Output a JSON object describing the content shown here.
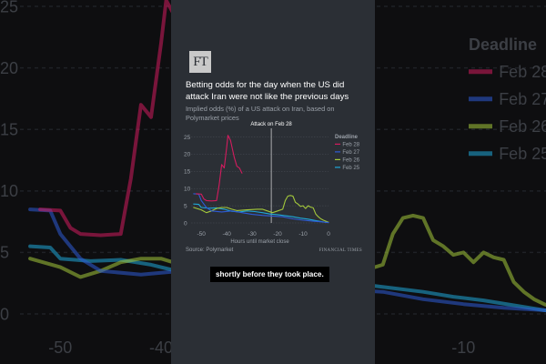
{
  "logo": "FT",
  "caption": "shortly before they took place.",
  "chart_data": {
    "type": "line",
    "title": "Betting odds for the day when the US did attack Iran were not like the previous days",
    "subtitle": "Implied odds (%) of a US attack on Iran, based on Polymarket prices",
    "xlabel": "Hours until market close",
    "ylabel": "",
    "xlim": [
      -54,
      0
    ],
    "ylim": [
      0,
      27
    ],
    "x_ticks": [
      "-50",
      "-40",
      "-30",
      "-20",
      "-10",
      "0"
    ],
    "y_ticks": [
      "0",
      "5",
      "10",
      "15",
      "20",
      "25"
    ],
    "grid": true,
    "legend": {
      "title": "Deadline",
      "position": "right"
    },
    "annotation": {
      "text": "Attack on Feb 28",
      "x": -22.5
    },
    "source": "Source: Polymarket",
    "publisher": "FINANCIAL TIMES",
    "series": [
      {
        "name": "Feb 28",
        "color": "#d21c5e",
        "points": [
          [
            -52,
            8.5
          ],
          [
            -50,
            8.4
          ],
          [
            -49,
            7
          ],
          [
            -48,
            6.5
          ],
          [
            -46,
            6.4
          ],
          [
            -44,
            6.5
          ],
          [
            -43,
            11
          ],
          [
            -42,
            17
          ],
          [
            -41,
            16
          ],
          [
            -40,
            22
          ],
          [
            -39.5,
            25.5
          ],
          [
            -38.5,
            24
          ],
          [
            -37,
            19
          ],
          [
            -36,
            16.5
          ],
          [
            -35,
            16
          ],
          [
            -34,
            14.5
          ]
        ]
      },
      {
        "name": "Feb 27",
        "color": "#2e5bd6",
        "points": [
          [
            -53,
            8.5
          ],
          [
            -51,
            8.4
          ],
          [
            -50,
            6.5
          ],
          [
            -48,
            4.5
          ],
          [
            -46,
            3.5
          ],
          [
            -42,
            3.2
          ],
          [
            -38,
            3.5
          ],
          [
            -34,
            3
          ],
          [
            -30,
            2.5
          ],
          [
            -26,
            2.2
          ],
          [
            -22,
            2
          ],
          [
            -18,
            1.8
          ],
          [
            -14,
            1.2
          ],
          [
            -10,
            0.8
          ],
          [
            -6,
            0.5
          ],
          [
            -2,
            0.3
          ],
          [
            0,
            0.1
          ]
        ]
      },
      {
        "name": "Feb 26",
        "color": "#a4c93b",
        "points": [
          [
            -53,
            4.5
          ],
          [
            -50,
            3.8
          ],
          [
            -48,
            3
          ],
          [
            -46,
            3.5
          ],
          [
            -44,
            4.2
          ],
          [
            -42,
            4.5
          ],
          [
            -40,
            4.5
          ],
          [
            -38,
            4
          ],
          [
            -36,
            3.6
          ],
          [
            -32,
            3.8
          ],
          [
            -28,
            4
          ],
          [
            -26,
            4
          ],
          [
            -24,
            3.5
          ],
          [
            -22,
            3
          ],
          [
            -20,
            3.5
          ],
          [
            -18,
            4
          ],
          [
            -17,
            6.5
          ],
          [
            -16,
            7.8
          ],
          [
            -15,
            8
          ],
          [
            -14,
            7.8
          ],
          [
            -13,
            6
          ],
          [
            -12,
            5.5
          ],
          [
            -11,
            4.8
          ],
          [
            -10,
            5
          ],
          [
            -9,
            4.2
          ],
          [
            -8,
            5
          ],
          [
            -7,
            4.6
          ],
          [
            -6,
            4.4
          ],
          [
            -5,
            2.6
          ],
          [
            -4,
            1.8
          ],
          [
            -3,
            1.2
          ],
          [
            -2,
            0.8
          ],
          [
            0,
            0.2
          ]
        ]
      },
      {
        "name": "Feb 25",
        "color": "#1fa8d8",
        "points": [
          [
            -53,
            5.5
          ],
          [
            -51,
            5.4
          ],
          [
            -50,
            4.5
          ],
          [
            -47,
            4.3
          ],
          [
            -44,
            4.4
          ],
          [
            -41,
            4
          ],
          [
            -38,
            3.4
          ],
          [
            -35,
            3.2
          ],
          [
            -32,
            3.5
          ],
          [
            -29,
            3.3
          ],
          [
            -26,
            3
          ],
          [
            -23,
            2.6
          ],
          [
            -20,
            2.4
          ],
          [
            -17,
            2.1
          ],
          [
            -14,
            1.8
          ],
          [
            -11,
            1.4
          ],
          [
            -8,
            1.1
          ],
          [
            -5,
            0.7
          ],
          [
            -2,
            0.3
          ],
          [
            0,
            0.1
          ]
        ]
      }
    ]
  }
}
